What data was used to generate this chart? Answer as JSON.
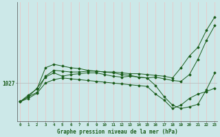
{
  "title": "Graphe pression niveau de la mer (hPa)",
  "background_color": "#cce8e8",
  "vgrid_color": "#e8c8c8",
  "hgrid_color": "#b8b8b8",
  "line_color": "#1a5c1a",
  "ylabel_text": "1027",
  "ylabel_value": 1027,
  "x_labels": [
    "0",
    "1",
    "2",
    "3",
    "4",
    "5",
    "6",
    "7",
    "8",
    "9",
    "10",
    "11",
    "12",
    "13",
    "14",
    "15",
    "16",
    "17",
    "18",
    "19",
    "20",
    "21",
    "22",
    "23"
  ],
  "series": [
    [
      1024.8,
      1025.4,
      1025.9,
      1027.8,
      1028.5,
      1028.4,
      1028.3,
      1028.3,
      1028.4,
      1028.4,
      1028.3,
      1028.3,
      1028.2,
      1028.1,
      1028.1,
      1028.0,
      1027.9,
      1027.8,
      1027.6,
      1028.8,
      1030.2,
      1031.2,
      1033.2,
      1034.8
    ],
    [
      1024.8,
      1025.6,
      1026.3,
      1028.8,
      1029.2,
      1029.0,
      1028.8,
      1028.7,
      1028.5,
      1028.4,
      1028.3,
      1028.2,
      1028.0,
      1027.9,
      1027.7,
      1027.6,
      1027.7,
      1027.5,
      1027.3,
      1027.2,
      1028.0,
      1029.8,
      1032.0,
      1033.8
    ],
    [
      1024.8,
      1025.4,
      1026.4,
      1027.7,
      1028.2,
      1027.8,
      1028.0,
      1028.1,
      1028.2,
      1028.2,
      1028.0,
      1027.8,
      1027.7,
      1027.8,
      1027.7,
      1027.6,
      1026.7,
      1025.4,
      1024.4,
      1024.0,
      1024.2,
      1024.5,
      1026.2,
      1028.2
    ],
    [
      1024.8,
      1025.2,
      1025.8,
      1027.0,
      1027.4,
      1027.6,
      1027.5,
      1027.4,
      1027.3,
      1027.2,
      1027.1,
      1027.0,
      1026.9,
      1026.8,
      1026.7,
      1026.6,
      1025.7,
      1025.0,
      1024.0,
      1024.4,
      1025.2,
      1025.7,
      1026.0,
      1026.4
    ]
  ],
  "ylim": [
    1022.5,
    1036.5
  ],
  "xlim": [
    -0.3,
    23.3
  ],
  "figsize": [
    3.2,
    2.0
  ],
  "dpi": 100
}
